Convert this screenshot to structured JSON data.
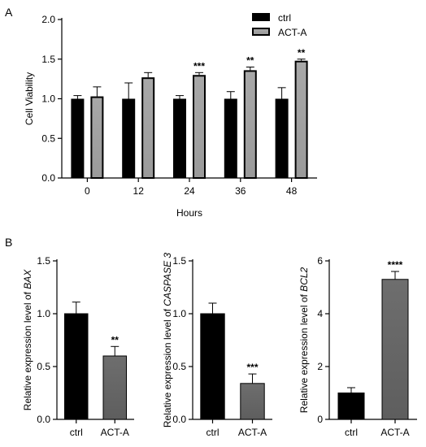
{
  "panel_labels": [
    "A",
    "B"
  ],
  "colors": {
    "ctrl": "#000000",
    "act_a_top": "#a6a6a6",
    "act_a_bottom": "#666666"
  },
  "chart_data": [
    {
      "type": "bar",
      "panel": "A",
      "xlabel": "Hours",
      "ylabel": "Cell Viability",
      "ylim": [
        0,
        2.0
      ],
      "yticks": [
        "0.0",
        "0.5",
        "1.0",
        "1.5",
        "2.0"
      ],
      "categories": [
        "0",
        "12",
        "24",
        "36",
        "48"
      ],
      "legend_position": "top-right",
      "series": [
        {
          "name": "ctrl",
          "values": [
            1.0,
            1.0,
            1.0,
            1.0,
            1.0
          ],
          "errors": [
            0.04,
            0.2,
            0.04,
            0.09,
            0.14
          ]
        },
        {
          "name": "ACT-A",
          "values": [
            1.03,
            1.27,
            1.3,
            1.36,
            1.48
          ],
          "errors": [
            0.12,
            0.06,
            0.03,
            0.04,
            0.02
          ]
        }
      ],
      "annotations": [
        "",
        "",
        "***",
        "**",
        "**"
      ]
    },
    {
      "type": "bar",
      "panel": "B",
      "ylabel_prefix": "Relative expression level of ",
      "ylabel_gene": "BAX",
      "ylim": [
        0,
        1.5
      ],
      "yticks": [
        "0.0",
        "0.5",
        "1.0",
        "1.5"
      ],
      "categories": [
        "ctrl",
        "ACT-A"
      ],
      "values": [
        1.0,
        0.6
      ],
      "errors": [
        0.11,
        0.09
      ],
      "annotations": [
        "",
        "**"
      ]
    },
    {
      "type": "bar",
      "panel": "B",
      "ylabel_prefix": "Relative expression level of ",
      "ylabel_gene": "CASPASE 3",
      "ylim": [
        0,
        1.5
      ],
      "yticks": [
        "0.0",
        "0.5",
        "1.0",
        "1.5"
      ],
      "categories": [
        "ctrl",
        "ACT-A"
      ],
      "values": [
        1.0,
        0.34
      ],
      "errors": [
        0.1,
        0.09
      ],
      "annotations": [
        "",
        "***"
      ]
    },
    {
      "type": "bar",
      "panel": "B",
      "ylabel_prefix": "Relative expression level of ",
      "ylabel_gene": "BCL2",
      "ylim": [
        0,
        6
      ],
      "yticks": [
        "0",
        "2",
        "4",
        "6"
      ],
      "categories": [
        "ctrl",
        "ACT-A"
      ],
      "values": [
        1.0,
        5.3
      ],
      "errors": [
        0.2,
        0.3
      ],
      "annotations": [
        "",
        "****"
      ]
    }
  ]
}
